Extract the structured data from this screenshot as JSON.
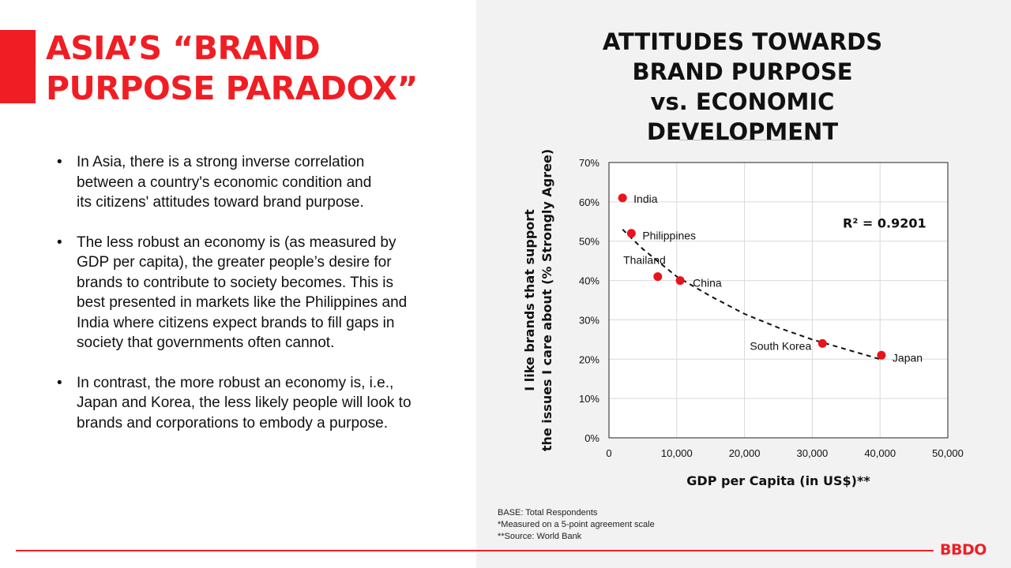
{
  "slide": {
    "title_lines": [
      "ASIA’S “BRAND",
      "PURPOSE PARADOX”"
    ],
    "bullets": [
      "In Asia, there is a strong inverse correlation\nbetween a country's economic condition and\nits citizens' attitudes toward brand purpose.",
      "The less robust an economy is (as measured by\nGDP per capita), the greater people’s desire for\nbrands to contribute to society becomes. This is\nbest presented in markets like the Philippines and\nIndia where citizens expect brands to fill gaps in\nsociety that governments often cannot.",
      "In contrast, the more robust an economy is, i.e.,\nJapan and Korea, the less likely people will look to\nbrands and corporations to embody a purpose."
    ],
    "bullet_symbol": "•",
    "footnotes": [
      "BASE: Total Respondents",
      "*Measured on a 5-point agreement scale",
      "**Source: World Bank"
    ],
    "logo": "BBDO",
    "colors": {
      "accent": "#f01e24",
      "right_panel": "#f2f2f2",
      "text": "#111111"
    }
  },
  "chart_data": {
    "type": "scatter",
    "title_lines": [
      "ATTITUDES TOWARDS",
      "BRAND PURPOSE",
      "vs. ECONOMIC DEVELOPMENT"
    ],
    "xlabel": "GDP per Capita (in US$)**",
    "ylabel_lines": [
      "I like brands that support",
      "the issues I care about (% Strongly Agree)"
    ],
    "xlim": [
      0,
      50000
    ],
    "ylim": [
      0,
      70
    ],
    "x_ticks": [
      0,
      10000,
      20000,
      30000,
      40000,
      50000
    ],
    "x_tick_labels": [
      "0",
      "10,000",
      "20,000",
      "30,000",
      "40,000",
      "50,000"
    ],
    "y_ticks": [
      0,
      10,
      20,
      30,
      40,
      50,
      60,
      70
    ],
    "y_tick_labels": [
      "0%",
      "10%",
      "20%",
      "30%",
      "40%",
      "50%",
      "60%",
      "70%"
    ],
    "grid": true,
    "points": [
      {
        "label": "India",
        "x": 2000,
        "y": 61
      },
      {
        "label": "Philippines",
        "x": 3300,
        "y": 52
      },
      {
        "label": "Thailand",
        "x": 7200,
        "y": 41
      },
      {
        "label": "China",
        "x": 10500,
        "y": 40
      },
      {
        "label": "South Korea",
        "x": 31500,
        "y": 24
      },
      {
        "label": "Japan",
        "x": 40200,
        "y": 21
      }
    ],
    "trendline": {
      "style": "dashed",
      "x": [
        2000,
        5000,
        10000,
        15000,
        20000,
        25000,
        30000,
        35000,
        40000
      ],
      "y": [
        53,
        48,
        41,
        36,
        31.5,
        28,
        25,
        22.5,
        20
      ]
    },
    "annotation": "R² = 0.9201",
    "point_color": "#e8141c"
  }
}
